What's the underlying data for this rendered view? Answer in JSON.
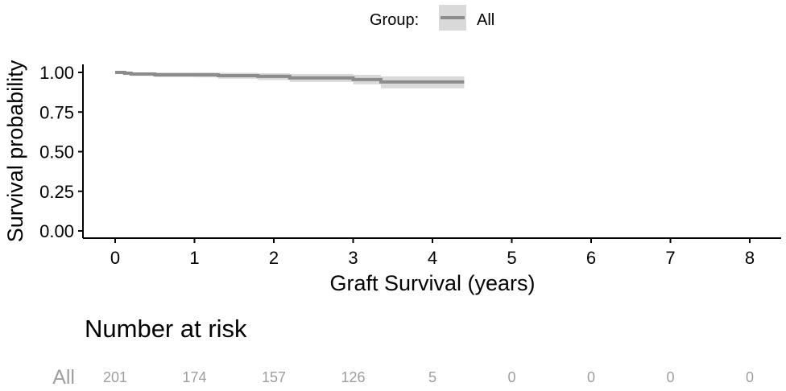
{
  "chart_data": {
    "type": "line",
    "ylabel": "Survival probability",
    "xlabel": "Graft Survival (years)",
    "xlim": [
      0,
      8
    ],
    "ylim": [
      0,
      1
    ],
    "x_ticks": [
      0,
      1,
      2,
      3,
      4,
      5,
      6,
      7,
      8
    ],
    "y_ticks": [
      "0.00",
      "0.25",
      "0.50",
      "0.75",
      "1.00"
    ],
    "grid": false,
    "legend": {
      "title": "Group:",
      "position": "top",
      "entries": [
        "All"
      ]
    },
    "series": [
      {
        "name": "All",
        "color": "#8c8c8c",
        "ci_color": "#d9d9d9",
        "x": [
          0,
          0.12,
          0.2,
          0.5,
          1.0,
          1.3,
          1.8,
          2.2,
          3.0,
          3.35,
          4.4
        ],
        "y": [
          1.0,
          0.995,
          0.99,
          0.985,
          0.985,
          0.98,
          0.975,
          0.965,
          0.955,
          0.94,
          0.94
        ],
        "lower": [
          1.0,
          0.987,
          0.978,
          0.97,
          0.968,
          0.96,
          0.952,
          0.94,
          0.925,
          0.9,
          0.9
        ],
        "upper": [
          1.0,
          1.0,
          1.0,
          1.0,
          1.0,
          0.998,
          0.995,
          0.99,
          0.985,
          0.975,
          0.975
        ]
      }
    ],
    "risk_table": {
      "title": "Number at risk",
      "row_label": "All",
      "times": [
        0,
        1,
        2,
        3,
        4,
        5,
        6,
        7,
        8
      ],
      "values": [
        "201",
        "174",
        "157",
        "126",
        "5",
        "0",
        "0",
        "0",
        "0"
      ]
    }
  }
}
